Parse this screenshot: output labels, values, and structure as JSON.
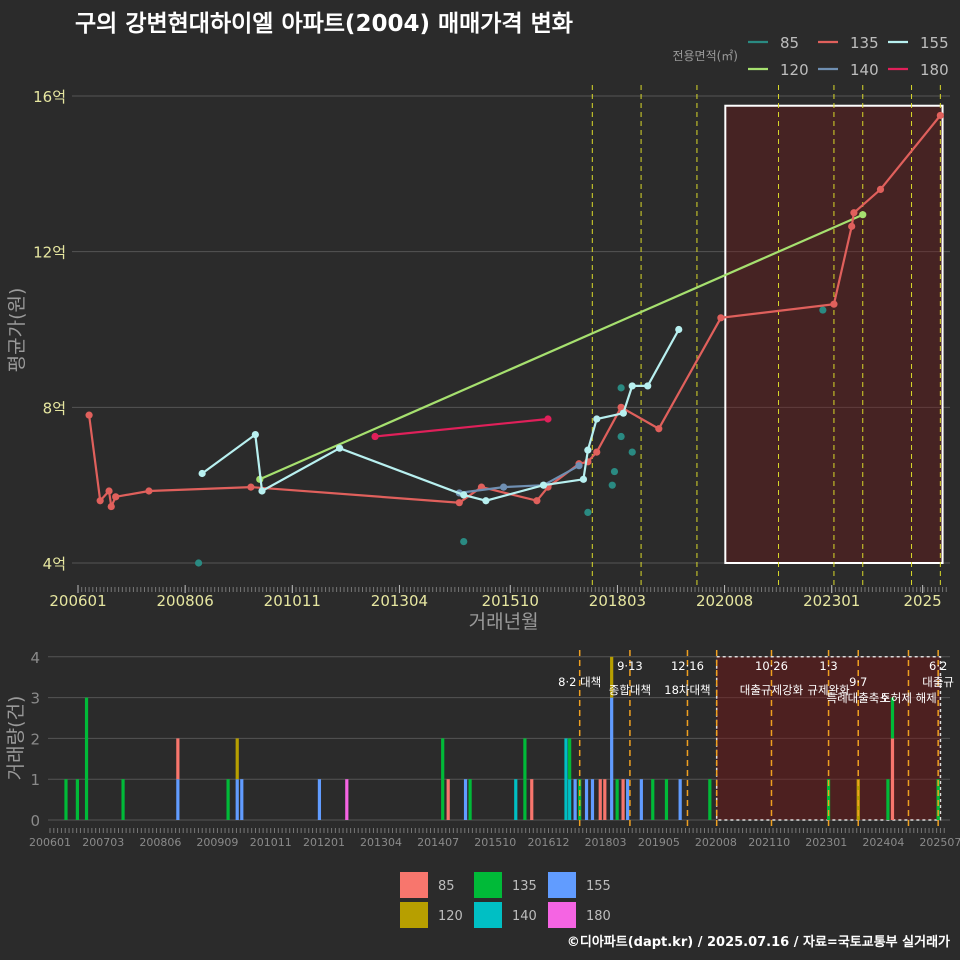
{
  "title": "구의 강변현대하이엘 아파트(2004) 매매가격 변화",
  "footer": "©디아파트(dapt.kr) / 2025.07.16 / 자료=국토교통부 실거래가",
  "chart_data": [
    {
      "type": "line",
      "title": "구의 강변현대하이엘 아파트(2004) 매매가격 변화",
      "xlabel": "거래년월",
      "ylabel": "평균가(원)",
      "x_ticks": [
        "200601",
        "200806",
        "201011",
        "201304",
        "201510",
        "201803",
        "202008",
        "202301",
        "2025"
      ],
      "y_ticks": [
        {
          "value": 4,
          "label": "4억"
        },
        {
          "value": 8,
          "label": "8억"
        },
        {
          "value": 12,
          "label": "12억"
        },
        {
          "value": 16,
          "label": "16억"
        }
      ],
      "ylim": [
        3.6,
        16.7
      ],
      "legend_title": "전용면적(㎡)",
      "legend_position": "top-right",
      "policy_lines": [
        2017.6,
        2018.7,
        2019.96,
        2021.8,
        2023.05,
        2023.7,
        2024.8,
        2025.45
      ],
      "highlight_range": [
        2020.6,
        2025.5
      ],
      "series": [
        {
          "name": "85",
          "color": "#2a8a82",
          "points": [
            [
              2008.72,
              4.0
            ],
            [
              2014.7,
              4.55
            ],
            [
              2017.5,
              5.3
            ],
            [
              2018.05,
              6.0
            ],
            [
              2018.1,
              6.35
            ],
            [
              2018.25,
              7.25
            ],
            [
              2018.25,
              8.5
            ],
            [
              2018.5,
              6.85
            ],
            [
              2022.8,
              10.5
            ]
          ]
        },
        {
          "name": "120",
          "color": "#a6e06f",
          "points": [
            [
              2010.1,
              6.15
            ],
            [
              2023.7,
              12.95
            ]
          ]
        },
        {
          "name": "135",
          "color": "#e0605c",
          "points": [
            [
              2006.25,
              7.8
            ],
            [
              2006.5,
              5.6
            ],
            [
              2006.7,
              5.85
            ],
            [
              2006.75,
              5.45
            ],
            [
              2006.85,
              5.7
            ],
            [
              2007.6,
              5.85
            ],
            [
              2009.9,
              5.95
            ],
            [
              2014.6,
              5.55
            ],
            [
              2015.1,
              5.95
            ],
            [
              2016.35,
              5.6
            ],
            [
              2016.6,
              5.95
            ],
            [
              2017.3,
              6.55
            ],
            [
              2017.5,
              6.6
            ],
            [
              2017.7,
              6.85
            ],
            [
              2018.25,
              8.0
            ],
            [
              2019.1,
              7.45
            ],
            [
              2020.5,
              10.3
            ],
            [
              2023.05,
              10.65
            ],
            [
              2023.45,
              12.65
            ],
            [
              2023.5,
              13.0
            ],
            [
              2024.1,
              13.6
            ],
            [
              2025.45,
              15.5
            ]
          ]
        },
        {
          "name": "140",
          "color": "#6f8fb2",
          "points": [
            [
              2014.6,
              5.8
            ],
            [
              2015.6,
              5.95
            ],
            [
              2016.5,
              6.0
            ],
            [
              2017.3,
              6.5
            ]
          ]
        },
        {
          "name": "155",
          "color": "#b8f0f0",
          "points": [
            [
              2008.8,
              6.3
            ],
            [
              2010.0,
              7.3
            ],
            [
              2010.15,
              5.85
            ],
            [
              2011.9,
              6.95
            ],
            [
              2014.7,
              5.75
            ],
            [
              2015.2,
              5.6
            ],
            [
              2016.5,
              6.0
            ],
            [
              2017.4,
              6.15
            ],
            [
              2017.5,
              6.9
            ],
            [
              2017.7,
              7.7
            ],
            [
              2018.3,
              7.85
            ],
            [
              2018.5,
              8.55
            ],
            [
              2018.85,
              8.55
            ],
            [
              2019.55,
              10.0
            ]
          ]
        },
        {
          "name": "180",
          "color": "#e0205a",
          "points": [
            [
              2012.7,
              7.25
            ],
            [
              2016.6,
              7.7
            ]
          ]
        }
      ]
    },
    {
      "type": "bar",
      "ylabel": "거래량(건)",
      "x_ticks": [
        "200601",
        "200703",
        "200806",
        "200909",
        "201011",
        "201201",
        "201304",
        "201407",
        "201510",
        "201612",
        "201803",
        "201905",
        "202008",
        "202110",
        "202301",
        "202404",
        "202507"
      ],
      "y_ticks": [
        "0",
        "1",
        "2",
        "3",
        "4"
      ],
      "ylim": [
        0,
        4
      ],
      "legend": [
        {
          "name": "85",
          "color": "#f8766d"
        },
        {
          "name": "120",
          "color": "#b79f00"
        },
        {
          "name": "135",
          "color": "#00ba38"
        },
        {
          "name": "140",
          "color": "#00bfc4"
        },
        {
          "name": "155",
          "color": "#619cff"
        },
        {
          "name": "180",
          "color": "#f564e3"
        }
      ],
      "highlight_range": [
        2020.6,
        2025.5
      ],
      "policy_lines": [
        2017.6,
        2018.7,
        2019.96,
        2020.6,
        2021.8,
        2023.05,
        2023.7,
        2024.8,
        2025.45
      ],
      "annotations": [
        {
          "x": 2017.6,
          "label": "8·2 대책",
          "row": 2
        },
        {
          "x": 2018.7,
          "label": "9·13",
          "row": 0
        },
        {
          "x": 2018.7,
          "label": "종합대책",
          "row": 3
        },
        {
          "x": 2019.96,
          "label": "12·16",
          "row": 0
        },
        {
          "x": 2019.96,
          "label": "18차대책",
          "row": 3
        },
        {
          "x": 2021.8,
          "label": "10·26",
          "row": 0
        },
        {
          "x": 2021.8,
          "label": "대출규제강화",
          "row": 3
        },
        {
          "x": 2023.05,
          "label": "1·3",
          "row": 0
        },
        {
          "x": 2023.05,
          "label": "규제완화",
          "row": 3
        },
        {
          "x": 2023.7,
          "label": "9·7",
          "row": 2
        },
        {
          "x": 2023.7,
          "label": "특례대출축소",
          "row": 4
        },
        {
          "x": 2024.8,
          "label": "토허제 해제",
          "row": 4
        },
        {
          "x": 2025.45,
          "label": "6·2",
          "row": 0
        },
        {
          "x": 2025.45,
          "label": "대출규",
          "row": 2
        }
      ],
      "bars": [
        {
          "x": 2006.35,
          "area": "135",
          "value": 1
        },
        {
          "x": 2006.6,
          "area": "135",
          "value": 1
        },
        {
          "x": 2006.8,
          "area": "135",
          "value": 3
        },
        {
          "x": 2007.6,
          "area": "135",
          "value": 1
        },
        {
          "x": 2008.8,
          "area": "155",
          "value": 1
        },
        {
          "x": 2008.8,
          "area": "85",
          "value": 1
        },
        {
          "x": 2009.9,
          "area": "135",
          "value": 1
        },
        {
          "x": 2010.1,
          "area": "155",
          "value": 1
        },
        {
          "x": 2010.1,
          "area": "120",
          "value": 1
        },
        {
          "x": 2010.2,
          "area": "155",
          "value": 1
        },
        {
          "x": 2011.9,
          "area": "155",
          "value": 1
        },
        {
          "x": 2012.5,
          "area": "180",
          "value": 1
        },
        {
          "x": 2014.6,
          "area": "135",
          "value": 1
        },
        {
          "x": 2014.6,
          "area": "135",
          "value": 1
        },
        {
          "x": 2014.72,
          "area": "85",
          "value": 1
        },
        {
          "x": 2015.1,
          "area": "155",
          "value": 1
        },
        {
          "x": 2015.2,
          "area": "135",
          "value": 1
        },
        {
          "x": 2016.2,
          "area": "140",
          "value": 1
        },
        {
          "x": 2016.4,
          "area": "135",
          "value": 1
        },
        {
          "x": 2016.4,
          "area": "135",
          "value": 1
        },
        {
          "x": 2016.55,
          "area": "85",
          "value": 1
        },
        {
          "x": 2017.3,
          "area": "140",
          "value": 2
        },
        {
          "x": 2017.38,
          "area": "140",
          "value": 1
        },
        {
          "x": 2017.38,
          "area": "135",
          "value": 1
        },
        {
          "x": 2017.5,
          "area": "155",
          "value": 1
        },
        {
          "x": 2017.6,
          "area": "135",
          "value": 1
        },
        {
          "x": 2017.75,
          "area": "155",
          "value": 1
        },
        {
          "x": 2017.88,
          "area": "155",
          "value": 1
        },
        {
          "x": 2018.05,
          "area": "85",
          "value": 1
        },
        {
          "x": 2018.15,
          "area": "85",
          "value": 1
        },
        {
          "x": 2018.3,
          "area": "155",
          "value": 3
        },
        {
          "x": 2018.3,
          "area": "120",
          "value": 1
        },
        {
          "x": 2018.42,
          "area": "135",
          "value": 1
        },
        {
          "x": 2018.55,
          "area": "85",
          "value": 1
        },
        {
          "x": 2018.65,
          "area": "155",
          "value": 1
        },
        {
          "x": 2018.95,
          "area": "155",
          "value": 1
        },
        {
          "x": 2019.2,
          "area": "135",
          "value": 1
        },
        {
          "x": 2019.5,
          "area": "135",
          "value": 1
        },
        {
          "x": 2019.8,
          "area": "155",
          "value": 1
        },
        {
          "x": 2020.45,
          "area": "135",
          "value": 1
        },
        {
          "x": 2023.05,
          "area": "135",
          "value": 1
        },
        {
          "x": 2023.7,
          "area": "120",
          "value": 1
        },
        {
          "x": 2024.35,
          "area": "135",
          "value": 1
        },
        {
          "x": 2024.45,
          "area": "85",
          "value": 2
        },
        {
          "x": 2024.45,
          "area": "135",
          "value": 1
        },
        {
          "x": 2025.45,
          "area": "135",
          "value": 1
        }
      ]
    }
  ]
}
